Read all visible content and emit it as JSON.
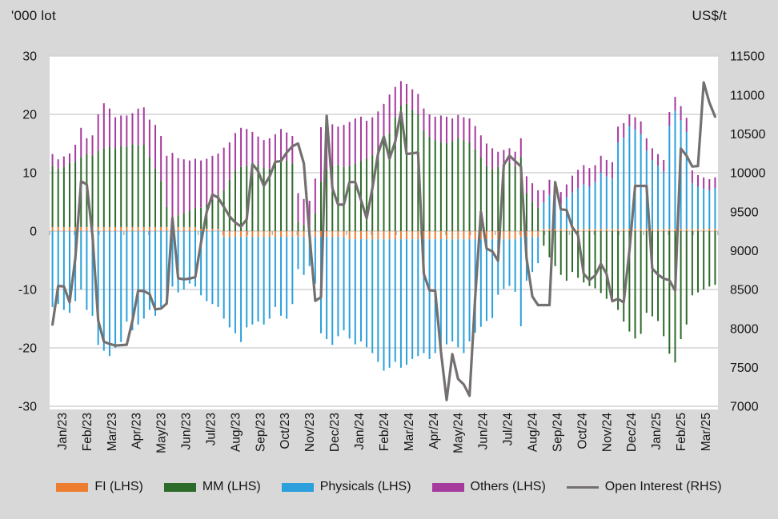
{
  "page": {
    "background": "#d8d8d8",
    "plot_background": "#ffffff",
    "gridline_color": "#d4d4d4",
    "tick_color": "#b0b0b0",
    "text_color": "#151515"
  },
  "chart_data": {
    "type": "bar",
    "subtype": "weekly stacked bars (LHS) with overlaid line (RHS)",
    "title": "",
    "left_axis": {
      "title": "'000 lot",
      "min": -30,
      "max": 30,
      "ticks": [
        30,
        20,
        10,
        0,
        -10,
        -20,
        -30
      ]
    },
    "right_axis": {
      "title": "US$/t",
      "min": 7000,
      "max": 11500,
      "ticks": [
        11500,
        11000,
        10500,
        10000,
        9500,
        9000,
        8500,
        8000,
        7500,
        7000
      ]
    },
    "categories": [
      "Jan/23",
      "Feb/23",
      "Mar/23",
      "Apr/23",
      "May/23",
      "Jun/23",
      "Jul/23",
      "Aug/23",
      "Sep/23",
      "Oct/23",
      "Nov/23",
      "Dec/23",
      "Jan/24",
      "Feb/24",
      "Mar/24",
      "Apr/24",
      "May/24",
      "Jun/24",
      "Jul/24",
      "Aug/24",
      "Sep/24",
      "Oct/24",
      "Nov/24",
      "Dec/24",
      "Jan/25",
      "Feb/25",
      "Mar/25"
    ],
    "weeks_per_month": [
      4,
      4,
      5,
      4,
      4,
      5,
      4,
      4,
      5,
      4,
      4,
      5,
      4,
      4,
      5,
      4,
      4,
      5,
      4,
      4,
      5,
      4,
      4,
      5,
      4,
      4,
      5
    ],
    "legend_position": "bottom",
    "grid": true,
    "series": [
      {
        "name": "FI (LHS)",
        "axis": "left",
        "color": "#ED7D31",
        "render": "bar",
        "values": [
          0.7,
          0.7,
          0.7,
          0.7,
          0.7,
          0.7,
          0.7,
          0.7,
          0.7,
          0.7,
          0.7,
          0.7,
          0.7,
          0.7,
          0.7,
          0.7,
          0.7,
          0.7,
          0.7,
          0.7,
          0.7,
          0.7,
          0.7,
          0.7,
          0.7,
          0.7,
          0.4,
          0.4,
          0.4,
          0.4,
          -1,
          -1,
          -1,
          -1,
          -1,
          -1,
          -1,
          -1,
          -1,
          -1,
          -1,
          -1,
          -1,
          -1,
          -1,
          -1,
          -1,
          -1,
          -1,
          -1,
          -1,
          -1,
          -1.4,
          -1.4,
          -1.4,
          -1.4,
          -1.4,
          -1.4,
          -1.4,
          -1.4,
          -1.4,
          -1.4,
          -1.4,
          -1.4,
          -1.4,
          -1.4,
          -1.4,
          -1.4,
          -1.4,
          -1.4,
          -1.4,
          -1.4,
          -1.4,
          -1.4,
          -1.4,
          -1.4,
          -1.4,
          -1.4,
          -1.4,
          -1.4,
          -1.4,
          -1.4,
          -1,
          -1,
          -1,
          -1,
          0.4,
          0.4,
          0.4,
          0.4,
          0.4,
          0.4,
          0.4,
          0.4,
          0.4,
          0.4,
          0.4,
          0.4,
          0.4,
          0.4,
          0.4,
          0.4,
          0.4,
          0.4,
          0.4,
          0.4,
          0.4,
          0.4,
          0.4,
          0.4,
          0.4,
          0.4,
          0.4,
          0.4,
          0.4,
          0.4,
          0.4
        ]
      },
      {
        "name": "MM (LHS)",
        "axis": "left",
        "color": "#2D6B2A",
        "render": "bar",
        "values": [
          10.5,
          10,
          10.3,
          11,
          11.2,
          12,
          12.5,
          12.3,
          13,
          13.5,
          13.8,
          13.5,
          13.9,
          13.8,
          14.2,
          14,
          14.1,
          12,
          10,
          7.9,
          3.5,
          1.5,
          2,
          2.4,
          2.8,
          3.2,
          3.6,
          4.2,
          5,
          5.8,
          7,
          8.8,
          10.4,
          11,
          11.2,
          11.5,
          11.3,
          10.9,
          10.6,
          12,
          12.4,
          12.1,
          11.6,
          1.6,
          1,
          0.8,
          3,
          8.5,
          10.5,
          11.2,
          11.4,
          11,
          11.2,
          11.6,
          12,
          12.4,
          13,
          14.2,
          15.6,
          16.8,
          19.5,
          21.5,
          21.8,
          20.8,
          20,
          17.2,
          16.2,
          15.6,
          15.2,
          15,
          15.4,
          16,
          15.6,
          15.2,
          14,
          12.6,
          11.2,
          10.6,
          11,
          11.5,
          11.8,
          11.2,
          12.7,
          6.5,
          5,
          4,
          -2.5,
          -4.5,
          -6,
          -7.5,
          -8.5,
          -7,
          -8,
          -8.8,
          -9.4,
          -9.8,
          -10.6,
          -11.6,
          -12.2,
          -13.5,
          -15.5,
          -17.2,
          -18.4,
          -17.6,
          -14,
          -14.6,
          -15.4,
          -18,
          -21,
          -22.5,
          -18.5,
          -16,
          -11,
          -10.5,
          -10,
          -9.5,
          -9.2
        ]
      },
      {
        "name": "Physicals (LHS)",
        "axis": "left",
        "color": "#2BA0DC",
        "render": "bar",
        "values": [
          -13,
          -12.5,
          -13.5,
          -14,
          -12,
          -10,
          -13.5,
          -14.5,
          -19.5,
          -20.5,
          -21.4,
          -20,
          -19,
          -15.5,
          -17,
          -16,
          -15,
          -13.5,
          -14.5,
          -13,
          -12,
          -9.5,
          -10.5,
          -10,
          -9,
          -9.5,
          -11,
          -12,
          -12.5,
          -13,
          -14,
          -15.5,
          -16.5,
          -18,
          -15.5,
          -15,
          -14.5,
          -15,
          -14,
          -12,
          -13.5,
          -14,
          -11.5,
          -5.5,
          -6.5,
          -5,
          -8,
          -16.5,
          -17.5,
          -18.5,
          -17,
          -16,
          -17,
          -18,
          -17.5,
          -18.5,
          -19.5,
          -21,
          -22.5,
          -22,
          -21,
          -22,
          -21.5,
          -20.5,
          -20,
          -19.5,
          -20.5,
          -19.5,
          -19,
          -18,
          -17.5,
          -18.5,
          -19.5,
          -17.5,
          -16,
          -15,
          -14,
          -13.5,
          -9.5,
          -8.5,
          -8,
          -9,
          -15.3,
          -7.5,
          -6,
          -4.5,
          4.5,
          5.8,
          5,
          4.2,
          5.4,
          6.2,
          7,
          7.6,
          7.2,
          8,
          9.6,
          9,
          8.6,
          14.8,
          15.6,
          17.6,
          17,
          16.2,
          13.4,
          11.8,
          10.8,
          9.8,
          17.6,
          20.2,
          18.6,
          16.6,
          7.8,
          7.2,
          6.9,
          6.6,
          7
        ]
      },
      {
        "name": "Others (LHS)",
        "axis": "left",
        "color": "#A63A9D",
        "render": "bar",
        "values": [
          2,
          1.6,
          1.8,
          1.6,
          2.9,
          5,
          2.7,
          3.4,
          6.3,
          7.7,
          6.5,
          5.3,
          5.2,
          5.3,
          5.3,
          6.3,
          6.4,
          6.4,
          7.5,
          7.7,
          8.7,
          11.2,
          9.8,
          9.2,
          8.6,
          8.5,
          8.1,
          7.8,
          7.5,
          7.1,
          7.3,
          6.4,
          6.4,
          6.7,
          6.3,
          5.5,
          4.9,
          4.7,
          5.3,
          4.6,
          5.1,
          4.8,
          4.7,
          4.9,
          4.5,
          4.4,
          6,
          9.3,
          8.1,
          7.1,
          6.5,
          7.2,
          7.5,
          7.7,
          7.6,
          6.5,
          6.5,
          6.3,
          6.2,
          6.6,
          5.2,
          4.2,
          3.4,
          3.5,
          3.5,
          3.8,
          3.8,
          4,
          4.6,
          4.6,
          3.9,
          3.9,
          3.9,
          4.1,
          4,
          3.8,
          3.8,
          3.6,
          2.6,
          2.4,
          2.4,
          2.4,
          3.2,
          2.9,
          3.2,
          3,
          2.1,
          2.6,
          2.1,
          2.1,
          2.2,
          2.9,
          3.1,
          3.3,
          3.2,
          2.9,
          2.9,
          2.8,
          2.8,
          2.7,
          2.5,
          2,
          2.1,
          2.2,
          2.1,
          2,
          2,
          2,
          2.4,
          2.4,
          2.4,
          2.4,
          2.2,
          2,
          1.9,
          1.9,
          1.8
        ]
      },
      {
        "name": "Open Interest (RHS)",
        "axis": "right",
        "color": "#757070",
        "render": "line",
        "values": [
          8050,
          8545,
          8540,
          8335,
          8900,
          9890,
          9850,
          9200,
          8100,
          7830,
          7800,
          7780,
          7785,
          7790,
          8100,
          8485,
          8480,
          8440,
          8245,
          8255,
          8320,
          9420,
          8645,
          8630,
          8640,
          8660,
          9100,
          9500,
          9720,
          9680,
          9560,
          9440,
          9360,
          9310,
          9400,
          10110,
          10020,
          9830,
          9950,
          10140,
          10150,
          10260,
          10340,
          10375,
          10120,
          9200,
          8355,
          8400,
          10730,
          9800,
          9590,
          9590,
          9880,
          9880,
          9650,
          9415,
          9800,
          10250,
          10465,
          10180,
          10400,
          10780,
          10240,
          10250,
          10260,
          8700,
          8490,
          8485,
          7700,
          7080,
          7670,
          7350,
          7280,
          7135,
          8400,
          9500,
          9025,
          8990,
          8870,
          10100,
          10220,
          10150,
          10080,
          8900,
          8410,
          8300,
          8300,
          8300,
          9880,
          9530,
          9520,
          9300,
          9200,
          8700,
          8620,
          8680,
          8830,
          8700,
          8350,
          8380,
          8335,
          9000,
          9830,
          9830,
          9830,
          8770,
          8690,
          8640,
          8620,
          8485,
          10310,
          10220,
          10080,
          10085,
          11160,
          10900,
          10720
        ]
      }
    ]
  },
  "legend": [
    {
      "label": "FI (LHS)",
      "color": "#ED7D31",
      "swatch": "bar"
    },
    {
      "label": "MM (LHS)",
      "color": "#2D6B2A",
      "swatch": "bar"
    },
    {
      "label": "Physicals (LHS)",
      "color": "#2BA0DC",
      "swatch": "bar"
    },
    {
      "label": "Others (LHS)",
      "color": "#A63A9D",
      "swatch": "bar"
    },
    {
      "label": "Open Interest (RHS)",
      "color": "#757070",
      "swatch": "line"
    }
  ]
}
